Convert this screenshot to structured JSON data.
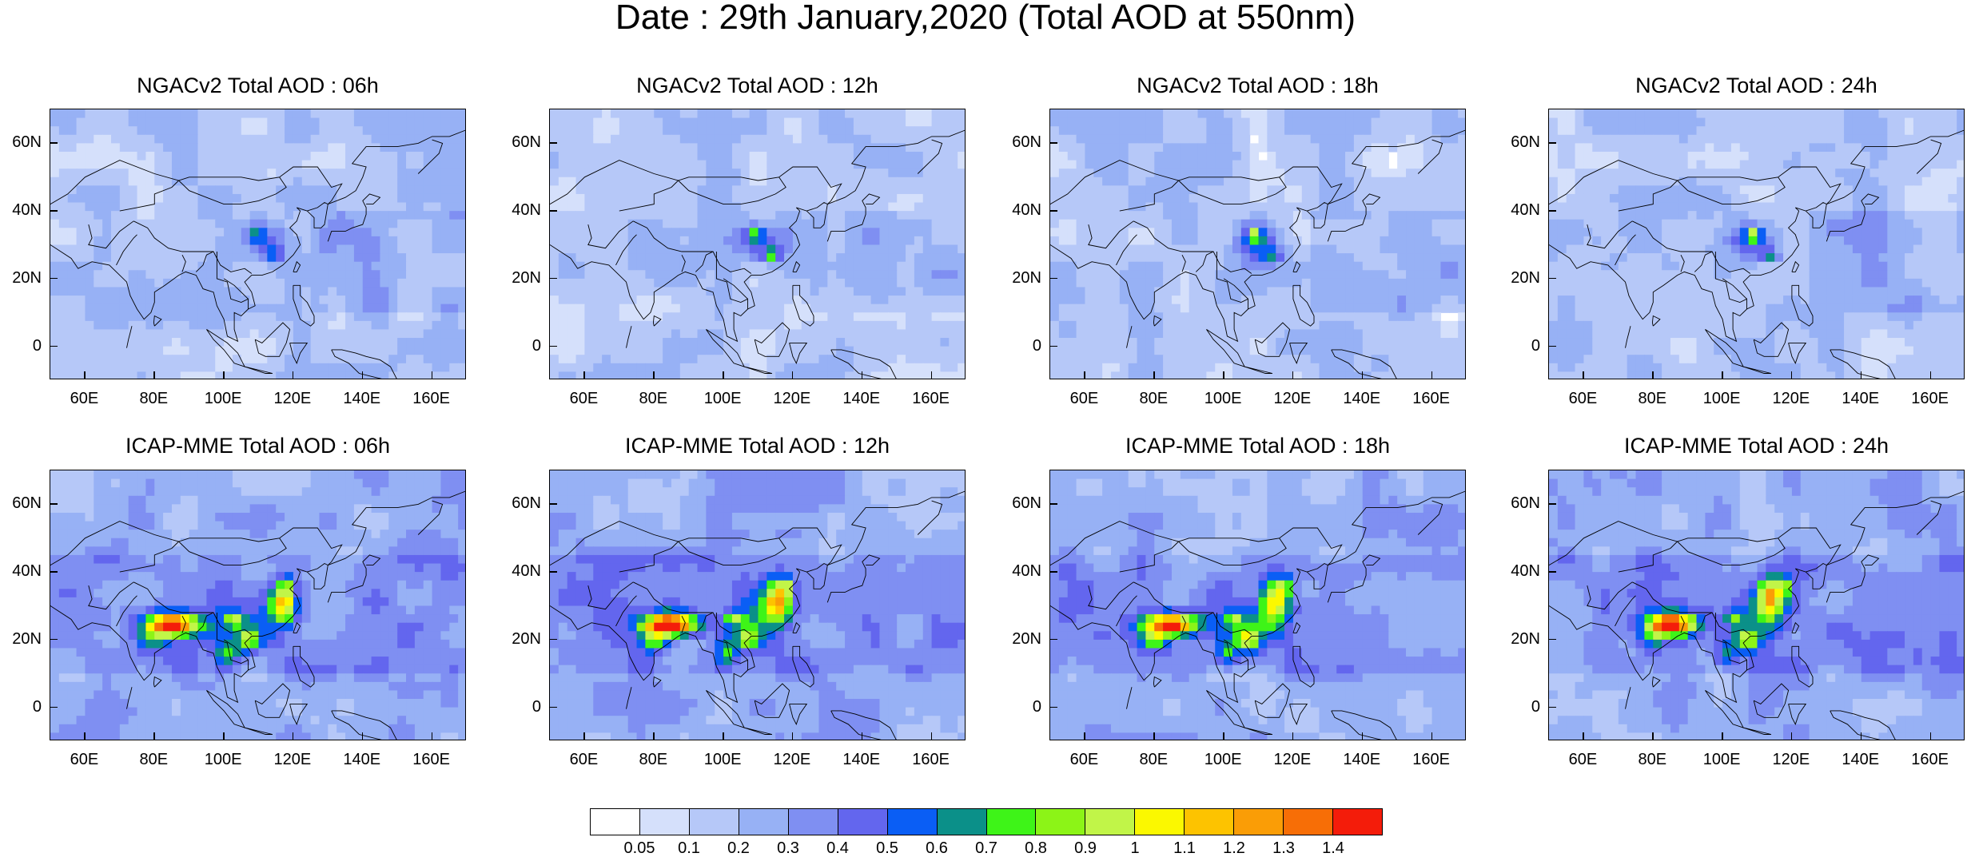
{
  "title": "Date : 29th January,2020 (Total AOD at 550nm)",
  "panels": [
    {
      "title": "NGACv2 Total AOD : 06h",
      "model": "ngac",
      "variant": 0
    },
    {
      "title": "NGACv2 Total AOD : 12h",
      "model": "ngac",
      "variant": 1
    },
    {
      "title": "NGACv2 Total AOD : 18h",
      "model": "ngac",
      "variant": 2
    },
    {
      "title": "NGACv2 Total AOD : 24h",
      "model": "ngac",
      "variant": 3
    },
    {
      "title": "ICAP-MME Total AOD : 06h",
      "model": "icap",
      "variant": 0
    },
    {
      "title": "ICAP-MME Total AOD : 12h",
      "model": "icap",
      "variant": 1
    },
    {
      "title": "ICAP-MME Total AOD : 18h",
      "model": "icap",
      "variant": 2
    },
    {
      "title": "ICAP-MME Total AOD : 24h",
      "model": "icap",
      "variant": 3
    }
  ],
  "axes": {
    "x_ticks": [
      "60E",
      "80E",
      "100E",
      "120E",
      "140E",
      "160E"
    ],
    "y_ticks": [
      "60N",
      "40N",
      "20N",
      "0"
    ],
    "lon_range": [
      50,
      170
    ],
    "lat_range": [
      -10,
      70
    ]
  },
  "colorbar": {
    "labels": [
      "0.05",
      "0.1",
      "0.2",
      "0.3",
      "0.4",
      "0.5",
      "0.6",
      "0.7",
      "0.8",
      "0.9",
      "1",
      "1.1",
      "1.2",
      "1.3",
      "1.4"
    ],
    "colors": [
      "#ffffff",
      "#d5e0fb",
      "#b6c8f8",
      "#97b1f5",
      "#7f8ff2",
      "#6366ee",
      "#0a5ef5",
      "#0b9089",
      "#3ef418",
      "#8cf417",
      "#c1f548",
      "#fbf800",
      "#fdc300",
      "#fa9d06",
      "#f76e06",
      "#f41c0a"
    ]
  }
}
